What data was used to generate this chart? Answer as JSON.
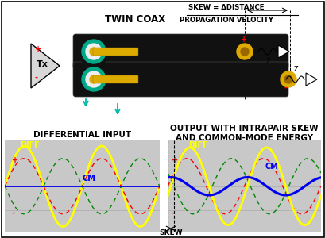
{
  "title_skew_num": "SKEW = ΔDISTANCE",
  "title_skew_den": "PROPAGATION VELOCITY",
  "title_twin_coax": "TWIN COAX",
  "title_diff_input": "DIFFERENTIAL INPUT",
  "title_output_line1": "OUTPUT WITH INTRAPAIR SKEW",
  "title_output_line2": "AND COMMON-MODE ENERGY",
  "label_diff": "DIFF",
  "label_cm": "CM",
  "label_skew": "SKEW",
  "label_tx": "Tx",
  "bg_color": "#ffffff",
  "plot_bg": "#c8c8c8",
  "cable_color_outer": "#111111",
  "cable_color_shield": "#00aa88",
  "cable_color_insulator": "#eeeeee",
  "cable_color_center": "#ddaa00",
  "wave_yellow": "#ffff00",
  "wave_red": "#ff0000",
  "wave_green": "#008800",
  "wave_blue": "#0000ee",
  "skew_phase": 0.5,
  "amplitude": 1.0
}
